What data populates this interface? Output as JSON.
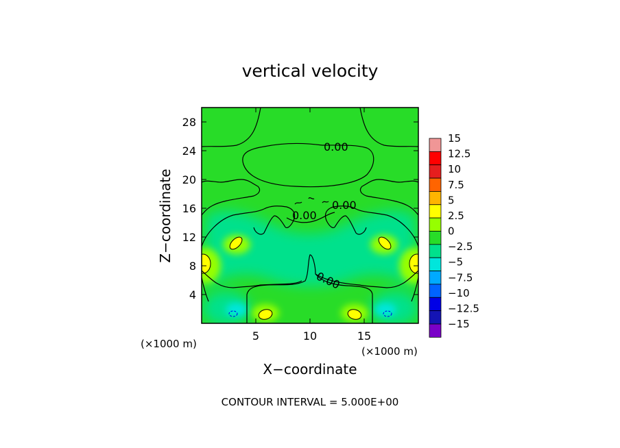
{
  "chart_data": {
    "type": "heatmap",
    "title": "vertical velocity",
    "xlabel": "X−coordinate",
    "ylabel": "Z−coordinate",
    "x_unit_label": "(×1000 m)",
    "y_unit_label": "(×1000 m)",
    "xlim": [
      0,
      20
    ],
    "ylim": [
      0,
      30
    ],
    "x_ticks": [
      5,
      10,
      15
    ],
    "y_ticks": [
      4,
      8,
      12,
      16,
      20,
      24,
      28
    ],
    "x_tick_labels": [
      "5",
      "10",
      "15"
    ],
    "y_tick_labels": [
      "4",
      "8",
      "12",
      "16",
      "20",
      "24",
      "28"
    ],
    "contour_interval_text": "CONTOUR INTERVAL = 5.000E+00",
    "contour_labels": [
      {
        "text": "0.00",
        "x": 12.4,
        "z": 24.5
      },
      {
        "text": "0.00",
        "x": 13.2,
        "z": 16.5
      },
      {
        "text": "0.00",
        "x": 9.5,
        "z": 15.1
      },
      {
        "text": "0.00",
        "x": 11.8,
        "z": 6.5
      }
    ],
    "colorbar": {
      "levels": [
        -15,
        -12.5,
        -10,
        -7.5,
        -5,
        -2.5,
        0,
        2.5,
        5,
        7.5,
        10,
        12.5,
        15
      ],
      "labels": [
        "15",
        "12.5",
        "10",
        "7.5",
        "5",
        "2.5",
        "0",
        "−2.5",
        "−5",
        "−7.5",
        "−10",
        "−12.5",
        "−15"
      ],
      "colors": [
        "#7a00c8",
        "#1414b4",
        "#0000e6",
        "#0064ff",
        "#00aaff",
        "#00e6dc",
        "#00e18c",
        "#28dc28",
        "#96ff00",
        "#ffff00",
        "#ffb400",
        "#ff6400",
        "#e61e1e",
        "#ff0000",
        "#f09696"
      ]
    },
    "field_regions": [
      {
        "name": "background",
        "value": 0.5
      },
      {
        "name": "left-edge-maximum",
        "x": 0.2,
        "z": 8.5,
        "value": 6
      },
      {
        "name": "right-edge-maximum",
        "x": 19.8,
        "z": 8.5,
        "value": 6
      },
      {
        "name": "left-tilted-maximum",
        "x": 3.2,
        "z": 11.5,
        "value": 6
      },
      {
        "name": "right-tilted-maximum",
        "x": 16.8,
        "z": 11.5,
        "value": 6
      },
      {
        "name": "left-surface-maximum",
        "x": 6.0,
        "z": 1.4,
        "value": 6
      },
      {
        "name": "right-surface-maximum",
        "x": 14.0,
        "z": 1.4,
        "value": 6
      },
      {
        "name": "left-surface-minimum",
        "x": 3.0,
        "z": 1.4,
        "value": -4
      },
      {
        "name": "right-surface-minimum",
        "x": 17.0,
        "z": 1.4,
        "value": -4
      },
      {
        "name": "mid-level-downdraft-band",
        "z": 11,
        "value": -1.5
      }
    ]
  }
}
